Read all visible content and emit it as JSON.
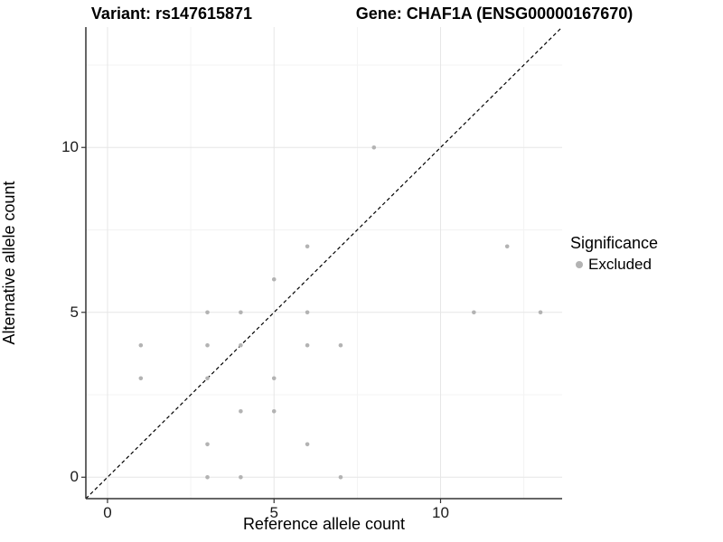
{
  "figure": {
    "title_left": "Variant: rs147615871",
    "title_right": "Gene: CHAF1A (ENSG00000167670)"
  },
  "chart_data": {
    "type": "scatter",
    "xlabel": "Reference allele count",
    "ylabel": "Alternative allele count",
    "xlim": [
      -0.65,
      13.65
    ],
    "ylim": [
      -0.65,
      13.65
    ],
    "x_major_ticks": [
      0,
      5,
      10
    ],
    "y_major_ticks": [
      0,
      5,
      10
    ],
    "x_minor_ticks": [
      2.5,
      7.5,
      12.5
    ],
    "y_minor_ticks": [
      2.5,
      7.5,
      12.5
    ],
    "grid": "major+minor",
    "background": "#ffffff",
    "major_grid_color": "#e6e6e6",
    "minor_grid_color": "#f3f3f3",
    "axis_line_color": "#333333",
    "reference_line": {
      "type": "identity",
      "slope": 1,
      "intercept": 0,
      "style": "dashed",
      "color": "#000000"
    },
    "series": [
      {
        "name": "Excluded",
        "color": "#b3b3b3",
        "points": [
          [
            1,
            3
          ],
          [
            1,
            4
          ],
          [
            3,
            0
          ],
          [
            3,
            1
          ],
          [
            3,
            3
          ],
          [
            3,
            4
          ],
          [
            3,
            5
          ],
          [
            4,
            0
          ],
          [
            4,
            2
          ],
          [
            4,
            4
          ],
          [
            4,
            5
          ],
          [
            5,
            2
          ],
          [
            5,
            3
          ],
          [
            5,
            6
          ],
          [
            6,
            1
          ],
          [
            6,
            4
          ],
          [
            6,
            5
          ],
          [
            6,
            7
          ],
          [
            7,
            0
          ],
          [
            7,
            4
          ],
          [
            8,
            10
          ],
          [
            11,
            5
          ],
          [
            12,
            7
          ],
          [
            13,
            5
          ]
        ]
      }
    ],
    "legend": {
      "title": "Significance",
      "position": "right",
      "entries": [
        {
          "label": "Excluded",
          "color": "#b3b3b3"
        }
      ]
    }
  }
}
